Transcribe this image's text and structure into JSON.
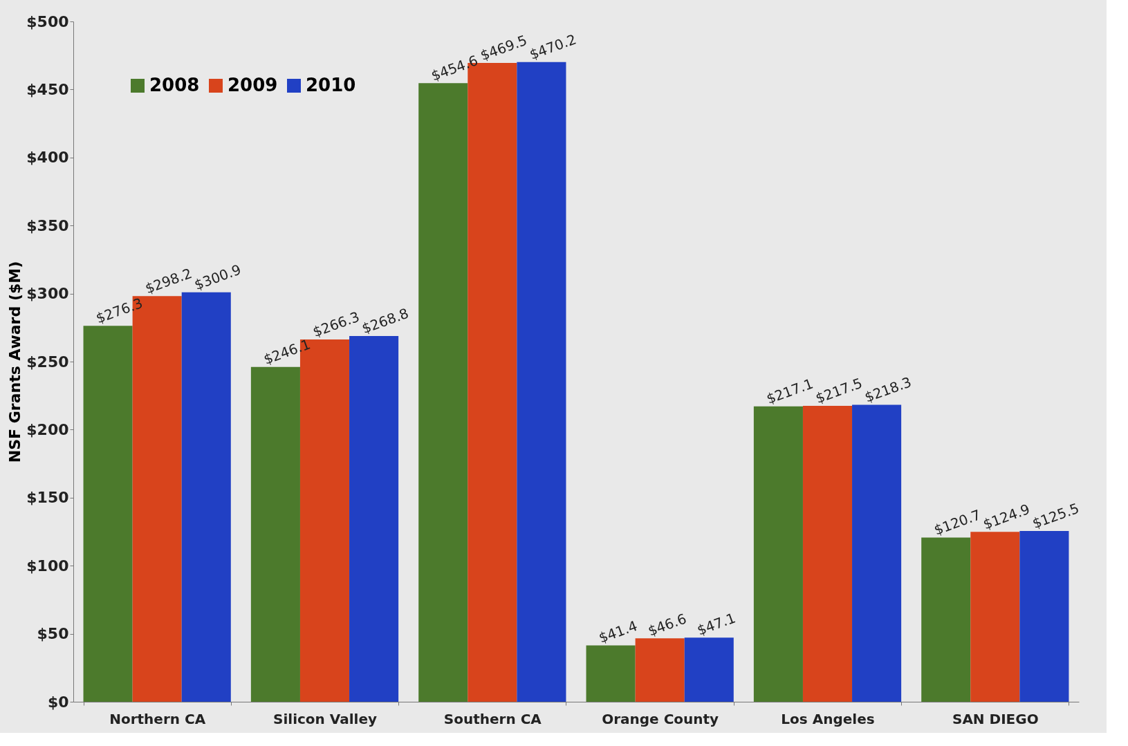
{
  "chart_data": {
    "type": "bar",
    "ylabel": "NSF Grants Award ($M)",
    "categories": [
      "Northern CA",
      "Silicon Valley",
      "Southern CA",
      "Orange County",
      "Los Angeles",
      "SAN DIEGO"
    ],
    "series": [
      {
        "name": "2008",
        "color": "#4c7a2c",
        "values": [
          276.3,
          246.1,
          454.6,
          41.4,
          217.1,
          120.7
        ],
        "value_labels": [
          "$276.3",
          "$246.1",
          "$454.6",
          "$41.4",
          "$217.1",
          "$120.7"
        ]
      },
      {
        "name": "2009",
        "color": "#d8441c",
        "values": [
          298.2,
          266.3,
          469.5,
          46.6,
          217.5,
          124.9
        ],
        "value_labels": [
          "$298.2",
          "$266.3",
          "$469.5",
          "$46.6",
          "$217.5",
          "$124.9"
        ]
      },
      {
        "name": "2010",
        "color": "#2140c4",
        "values": [
          300.9,
          268.8,
          470.2,
          47.1,
          218.3,
          125.5
        ],
        "value_labels": [
          "$300.9",
          "$268.8",
          "$470.2",
          "$47.1",
          "$218.3",
          "$125.5"
        ]
      }
    ],
    "ylim": [
      0,
      500
    ],
    "yticks": [
      {
        "value": 0,
        "label": "$0"
      },
      {
        "value": 50,
        "label": "$50"
      },
      {
        "value": 100,
        "label": "$100"
      },
      {
        "value": 150,
        "label": "$150"
      },
      {
        "value": 200,
        "label": "$200"
      },
      {
        "value": 250,
        "label": "$250"
      },
      {
        "value": 300,
        "label": "$300"
      },
      {
        "value": 350,
        "label": "$350"
      },
      {
        "value": 400,
        "label": "$400"
      },
      {
        "value": 450,
        "label": "$450"
      },
      {
        "value": 500,
        "label": "$500"
      }
    ],
    "grid": false,
    "legend": "top left"
  }
}
